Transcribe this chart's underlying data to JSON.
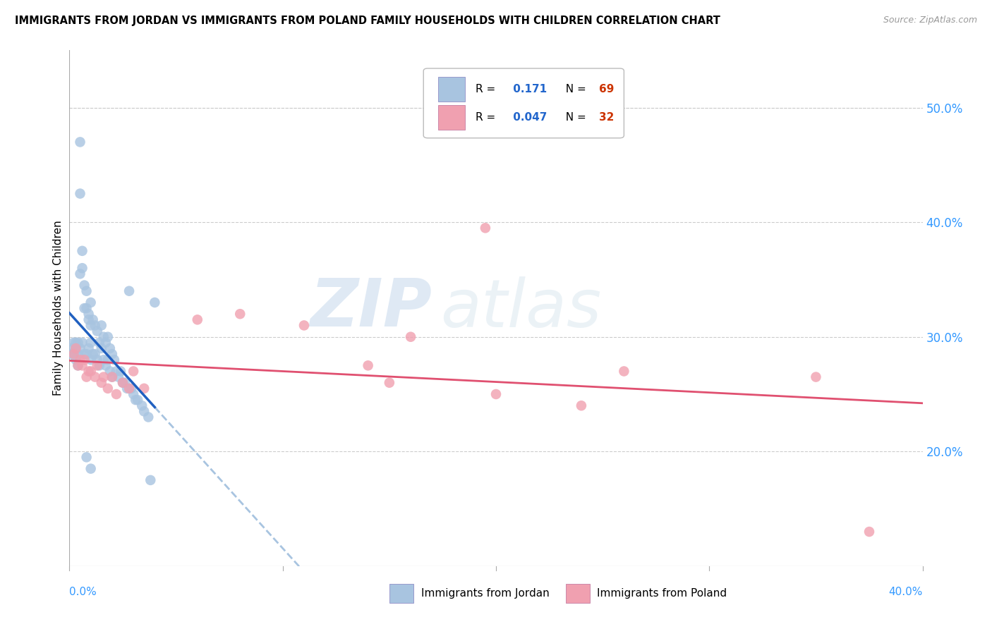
{
  "title": "IMMIGRANTS FROM JORDAN VS IMMIGRANTS FROM POLAND FAMILY HOUSEHOLDS WITH CHILDREN CORRELATION CHART",
  "source": "Source: ZipAtlas.com",
  "ylabel": "Family Households with Children",
  "ylabel_right_ticks": [
    "50.0%",
    "40.0%",
    "30.0%",
    "20.0%"
  ],
  "ylabel_right_positions": [
    0.5,
    0.4,
    0.3,
    0.2
  ],
  "xlim": [
    0.0,
    0.4
  ],
  "ylim": [
    0.1,
    0.55
  ],
  "jordan_color": "#a8c4e0",
  "poland_color": "#f0a0b0",
  "jordan_line_color": "#2060c0",
  "poland_line_color": "#e05070",
  "jordan_dashed_color": "#a8c4e0",
  "jordan_R": 0.171,
  "jordan_N": 69,
  "poland_R": 0.047,
  "poland_N": 32,
  "jordan_scatter_x": [
    0.001,
    0.001,
    0.002,
    0.002,
    0.003,
    0.003,
    0.003,
    0.004,
    0.004,
    0.004,
    0.005,
    0.005,
    0.005,
    0.005,
    0.006,
    0.006,
    0.006,
    0.007,
    0.007,
    0.007,
    0.008,
    0.008,
    0.008,
    0.009,
    0.009,
    0.009,
    0.01,
    0.01,
    0.01,
    0.01,
    0.011,
    0.011,
    0.012,
    0.012,
    0.013,
    0.013,
    0.014,
    0.014,
    0.015,
    0.015,
    0.016,
    0.016,
    0.017,
    0.017,
    0.018,
    0.018,
    0.019,
    0.019,
    0.02,
    0.02,
    0.021,
    0.022,
    0.023,
    0.024,
    0.025,
    0.026,
    0.027,
    0.028,
    0.029,
    0.03,
    0.031,
    0.032,
    0.034,
    0.035,
    0.037,
    0.038,
    0.04,
    0.01,
    0.008
  ],
  "jordan_scatter_y": [
    0.29,
    0.285,
    0.295,
    0.285,
    0.295,
    0.29,
    0.28,
    0.295,
    0.285,
    0.275,
    0.47,
    0.425,
    0.355,
    0.29,
    0.375,
    0.36,
    0.295,
    0.345,
    0.325,
    0.285,
    0.34,
    0.325,
    0.285,
    0.32,
    0.315,
    0.29,
    0.33,
    0.31,
    0.295,
    0.28,
    0.315,
    0.285,
    0.31,
    0.285,
    0.305,
    0.28,
    0.295,
    0.275,
    0.31,
    0.29,
    0.3,
    0.28,
    0.295,
    0.275,
    0.3,
    0.28,
    0.29,
    0.27,
    0.285,
    0.265,
    0.28,
    0.27,
    0.265,
    0.27,
    0.26,
    0.26,
    0.255,
    0.34,
    0.255,
    0.25,
    0.245,
    0.245,
    0.24,
    0.235,
    0.23,
    0.175,
    0.33,
    0.185,
    0.195
  ],
  "poland_scatter_x": [
    0.002,
    0.003,
    0.004,
    0.005,
    0.006,
    0.007,
    0.008,
    0.009,
    0.01,
    0.012,
    0.013,
    0.015,
    0.016,
    0.018,
    0.02,
    0.022,
    0.025,
    0.028,
    0.03,
    0.035,
    0.06,
    0.08,
    0.11,
    0.14,
    0.15,
    0.16,
    0.195,
    0.2,
    0.24,
    0.26,
    0.35,
    0.375
  ],
  "poland_scatter_y": [
    0.285,
    0.29,
    0.275,
    0.28,
    0.275,
    0.28,
    0.265,
    0.27,
    0.27,
    0.265,
    0.275,
    0.26,
    0.265,
    0.255,
    0.265,
    0.25,
    0.26,
    0.255,
    0.27,
    0.255,
    0.315,
    0.32,
    0.31,
    0.275,
    0.26,
    0.3,
    0.395,
    0.25,
    0.24,
    0.27,
    0.265,
    0.13
  ],
  "watermark_line1": "ZIP",
  "watermark_line2": "atlas"
}
